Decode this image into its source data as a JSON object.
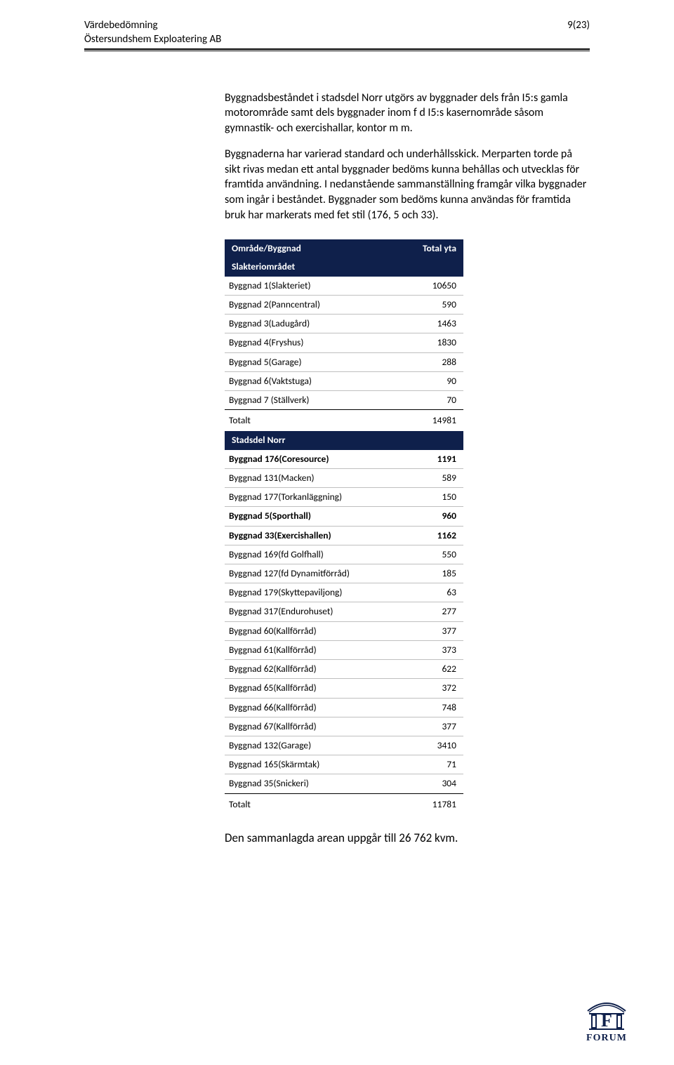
{
  "header": {
    "title": "Värdebedömning",
    "subtitle": "Östersundshem Exploatering AB",
    "page": "9(23)"
  },
  "paragraphs": {
    "p1": "Byggnadsbeståndet i stadsdel Norr utgörs av byggnader dels från I5:s gamla motorområde samt dels byggnader inom f d I5:s kasernområde såsom gymnastik- och exercishallar, kontor m m.",
    "p2": "Byggnaderna har varierad standard och underhållsskick. Merparten torde på sikt rivas medan ett antal byggnader bedöms kunna behållas och utvecklas för framtida användning. I nedanstående sammanställning framgår vilka byggnader som ingår i beståndet. Byggnader som bedöms kunna användas för framtida bruk har markerats med fet stil (176, 5 och 33)."
  },
  "table": {
    "header_left": "Område/Byggnad",
    "header_right": "Total yta",
    "section1": {
      "title": "Slakteriområdet",
      "rows": [
        {
          "label": "Byggnad 1(Slakteriet)",
          "value": "10650",
          "bold": false
        },
        {
          "label": "Byggnad 2(Panncentral)",
          "value": "590",
          "bold": false
        },
        {
          "label": "Byggnad 3(Ladugård)",
          "value": "1463",
          "bold": false
        },
        {
          "label": "Byggnad 4(Fryshus)",
          "value": "1830",
          "bold": false
        },
        {
          "label": "Byggnad 5(Garage)",
          "value": "288",
          "bold": false
        },
        {
          "label": "Byggnad 6(Vaktstuga)",
          "value": "90",
          "bold": false
        },
        {
          "label": "Byggnad 7 (Ställverk)",
          "value": "70",
          "bold": false
        }
      ],
      "total_label": "Totalt",
      "total_value": "14981"
    },
    "section2": {
      "title": "Stadsdel Norr",
      "rows": [
        {
          "label": "Byggnad 176(Coresource)",
          "value": "1191",
          "bold": true
        },
        {
          "label": "Byggnad 131(Macken)",
          "value": "589",
          "bold": false
        },
        {
          "label": "Byggnad 177(Torkanläggning)",
          "value": "150",
          "bold": false
        },
        {
          "label": "Byggnad 5(Sporthall)",
          "value": "960",
          "bold": true
        },
        {
          "label": "Byggnad 33(Exercishallen)",
          "value": "1162",
          "bold": true
        },
        {
          "label": "Byggnad 169(fd Golfhall)",
          "value": "550",
          "bold": false
        },
        {
          "label": "Byggnad 127(fd Dynamitförråd)",
          "value": "185",
          "bold": false
        },
        {
          "label": "Byggnad 179(Skyttepaviljong)",
          "value": "63",
          "bold": false
        },
        {
          "label": "Byggnad 317(Endurohuset)",
          "value": "277",
          "bold": false
        },
        {
          "label": "Byggnad 60(Kallförråd)",
          "value": "377",
          "bold": false
        },
        {
          "label": "Byggnad 61(Kallförråd)",
          "value": "373",
          "bold": false
        },
        {
          "label": "Byggnad 62(Kallförråd)",
          "value": "622",
          "bold": false
        },
        {
          "label": "Byggnad 65(Kallförråd)",
          "value": "372",
          "bold": false
        },
        {
          "label": "Byggnad 66(Kallförråd)",
          "value": "748",
          "bold": false
        },
        {
          "label": "Byggnad 67(Kallförråd)",
          "value": "377",
          "bold": false
        },
        {
          "label": "Byggnad 132(Garage)",
          "value": "3410",
          "bold": false
        },
        {
          "label": "Byggnad 165(Skärmtak)",
          "value": "71",
          "bold": false
        },
        {
          "label": "Byggnad 35(Snickeri)",
          "value": "304",
          "bold": false
        }
      ],
      "total_label": "Totalt",
      "total_value": "11781"
    }
  },
  "closing": "Den sammanlagda arean uppgår till 26 762 kvm.",
  "logo": {
    "text": "FORUM",
    "stroke": "#0f204b"
  }
}
